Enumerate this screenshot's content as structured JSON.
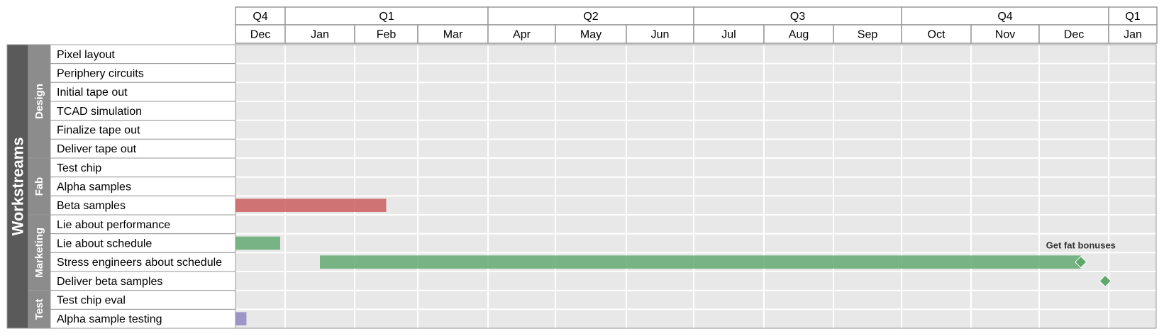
{
  "outer_label": "Workstreams",
  "colors": {
    "grid_bg": "#e8e8e8",
    "grid_line": "#ffffff",
    "border": "#999999",
    "outer_fill": "#5a5a5a",
    "group_fill": "#8c8c8c",
    "fab": "#c9595c",
    "marketing": "#5fa86c",
    "test": "#8d83bf"
  },
  "quarters": [
    {
      "label": "Q4",
      "months": 1
    },
    {
      "label": "Q1",
      "months": 3
    },
    {
      "label": "Q2",
      "months": 3
    },
    {
      "label": "Q3",
      "months": 3
    },
    {
      "label": "Q4",
      "months": 3
    },
    {
      "label": "Q1",
      "months": 1
    }
  ],
  "months": [
    "Dec",
    "Jan",
    "Feb",
    "Mar",
    "Apr",
    "May",
    "Jun",
    "Jul",
    "Aug",
    "Sep",
    "Oct",
    "Nov",
    "Dec",
    "Jan"
  ],
  "groups": [
    {
      "label": "Design",
      "tasks": [
        "Pixel layout",
        "Periphery circuits",
        "Initial tape out",
        "TCAD simulation",
        "Finalize tape out",
        "Deliver tape out"
      ]
    },
    {
      "label": "Fab",
      "tasks": [
        "Test chip",
        "Alpha samples",
        "Beta samples"
      ]
    },
    {
      "label": "Marketing",
      "tasks": [
        "Lie about performance",
        "Lie about schedule",
        "Stress engineers about schedule",
        "Deliver beta samples"
      ]
    },
    {
      "label": "Test",
      "tasks": [
        "Test chip eval",
        "Alpha sample testing"
      ]
    }
  ],
  "chart_data": {
    "type": "gantt",
    "time_unit": "months from start of first Dec",
    "bars": [
      {
        "task": "Beta samples",
        "start": 0.0,
        "end": 2.5,
        "color": "fab"
      },
      {
        "task": "Lie about schedule",
        "start": 0.0,
        "end": 0.9,
        "color": "marketing"
      },
      {
        "task": "Stress engineers about schedule",
        "start": 1.5,
        "end": 12.6,
        "color": "marketing"
      },
      {
        "task": "Alpha sample testing",
        "start": 0.0,
        "end": 0.22,
        "color": "test"
      }
    ],
    "milestones": [
      {
        "task": "Stress engineers about schedule",
        "at": 12.6,
        "color": "marketing",
        "label": "Get fat bonuses"
      },
      {
        "task": "Deliver beta samples",
        "at": 12.95,
        "color": "marketing",
        "label": ""
      }
    ]
  }
}
